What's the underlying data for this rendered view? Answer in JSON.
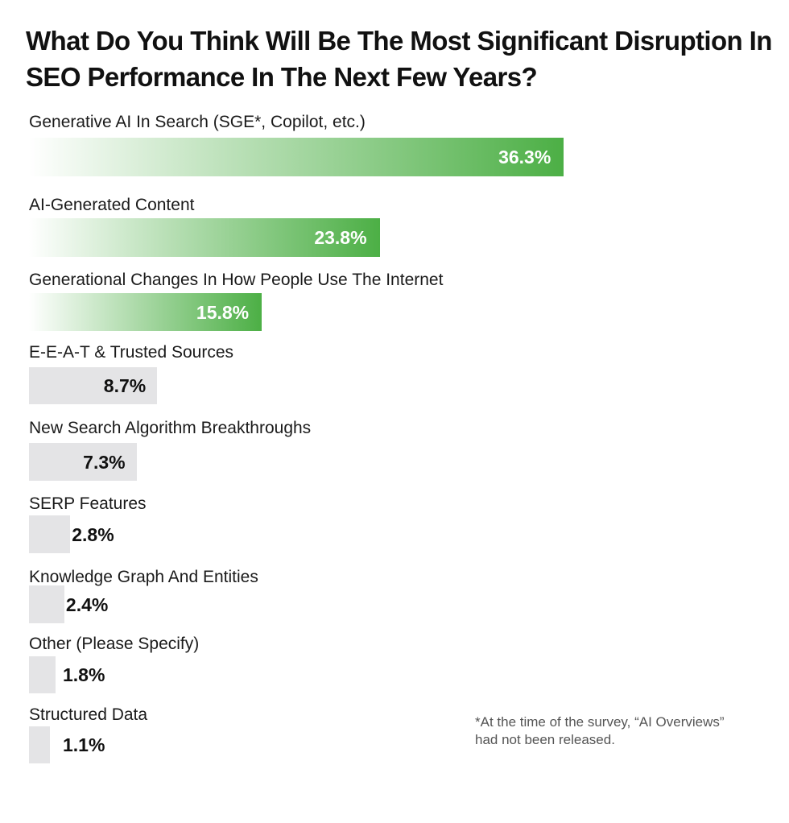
{
  "chart_data": {
    "type": "bar",
    "orientation": "horizontal",
    "title": "What Do You Think Will Be The Most Significant Disruption In SEO Performance In The Next Few Years?",
    "categories": [
      "Generative AI In Search (SGE*, Copilot, etc.)",
      "AI-Generated Content",
      "Generational Changes In How People Use The Internet",
      "E-E-A-T & Trusted Sources",
      "New Search Algorithm Breakthroughs",
      "SERP Features",
      "Knowledge Graph And Entities",
      "Other (Please Specify)",
      "Structured Data"
    ],
    "values": [
      36.3,
      23.8,
      15.8,
      8.7,
      7.3,
      2.8,
      2.4,
      1.8,
      1.1
    ],
    "value_labels": [
      "36.3%",
      "23.8%",
      "15.8%",
      "8.7%",
      "7.3%",
      "2.8%",
      "2.4%",
      "1.8%",
      "1.1%"
    ],
    "unit": "%",
    "highlighted_count": 3,
    "colors": {
      "highlight_start": "#ffffff",
      "highlight_end": "#4caf45",
      "highlight_label": "#ffffff",
      "neutral_bar": "#e4e4e6",
      "neutral_label": "#111111"
    },
    "footnote": "*At the time of the survey, “AI Overviews” had not been released."
  }
}
